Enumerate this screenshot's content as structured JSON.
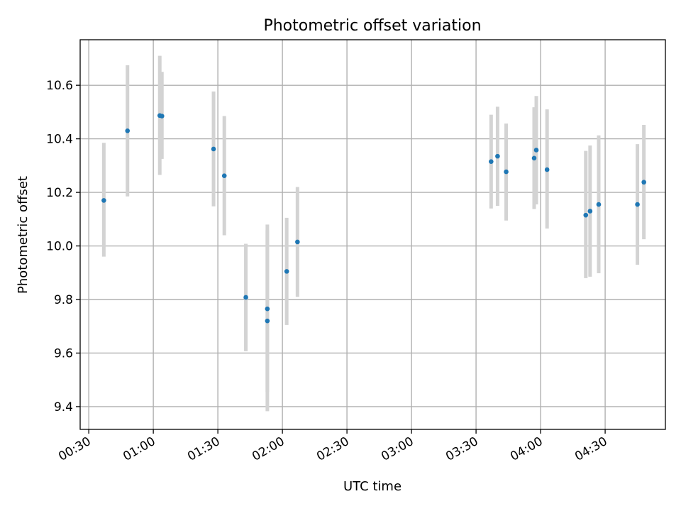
{
  "chart_data": {
    "type": "scatter",
    "title": "Photometric offset variation",
    "xlabel": "UTC time",
    "ylabel": "Photometric offset",
    "xlim": [
      "00:26",
      "04:58"
    ],
    "ylim": [
      9.315,
      10.77
    ],
    "x_ticks": [
      "00:30",
      "01:00",
      "01:30",
      "02:00",
      "02:30",
      "03:00",
      "03:30",
      "04:00",
      "04:30"
    ],
    "y_ticks": [
      9.4,
      9.6,
      9.8,
      10.0,
      10.2,
      10.4,
      10.6
    ],
    "grid": true,
    "colors": {
      "points": "#1f77b4",
      "errorbars": "#d3d3d3"
    },
    "points": [
      {
        "x": "00:37",
        "y": 10.17,
        "ylo": 9.96,
        "yhi": 10.385
      },
      {
        "x": "00:48",
        "y": 10.43,
        "ylo": 10.185,
        "yhi": 10.675
      },
      {
        "x": "01:03",
        "y": 10.487,
        "ylo": 10.265,
        "yhi": 10.71
      },
      {
        "x": "01:04",
        "y": 10.485,
        "ylo": 10.325,
        "yhi": 10.65
      },
      {
        "x": "01:28",
        "y": 10.362,
        "ylo": 10.148,
        "yhi": 10.577
      },
      {
        "x": "01:33",
        "y": 10.262,
        "ylo": 10.04,
        "yhi": 10.485
      },
      {
        "x": "01:43",
        "y": 9.808,
        "ylo": 9.607,
        "yhi": 10.008
      },
      {
        "x": "01:53",
        "y": 9.765,
        "ylo": 9.455,
        "yhi": 10.08
      },
      {
        "x": "01:53",
        "y": 9.72,
        "ylo": 9.383,
        "yhi": 10.058
      },
      {
        "x": "02:02",
        "y": 9.905,
        "ylo": 9.705,
        "yhi": 10.105
      },
      {
        "x": "02:07",
        "y": 10.015,
        "ylo": 9.81,
        "yhi": 10.22
      },
      {
        "x": "03:37",
        "y": 10.315,
        "ylo": 10.14,
        "yhi": 10.49
      },
      {
        "x": "03:40",
        "y": 10.335,
        "ylo": 10.15,
        "yhi": 10.52
      },
      {
        "x": "03:44",
        "y": 10.277,
        "ylo": 10.095,
        "yhi": 10.457
      },
      {
        "x": "03:57",
        "y": 10.328,
        "ylo": 10.138,
        "yhi": 10.518
      },
      {
        "x": "03:58",
        "y": 10.358,
        "ylo": 10.155,
        "yhi": 10.56
      },
      {
        "x": "04:03",
        "y": 10.285,
        "ylo": 10.065,
        "yhi": 10.51
      },
      {
        "x": "04:21",
        "y": 10.115,
        "ylo": 9.88,
        "yhi": 10.355
      },
      {
        "x": "04:23",
        "y": 10.13,
        "ylo": 9.885,
        "yhi": 10.375
      },
      {
        "x": "04:27",
        "y": 10.155,
        "ylo": 9.898,
        "yhi": 10.413
      },
      {
        "x": "04:45",
        "y": 10.155,
        "ylo": 9.93,
        "yhi": 10.38
      },
      {
        "x": "04:48",
        "y": 10.238,
        "ylo": 10.025,
        "yhi": 10.452
      }
    ]
  }
}
